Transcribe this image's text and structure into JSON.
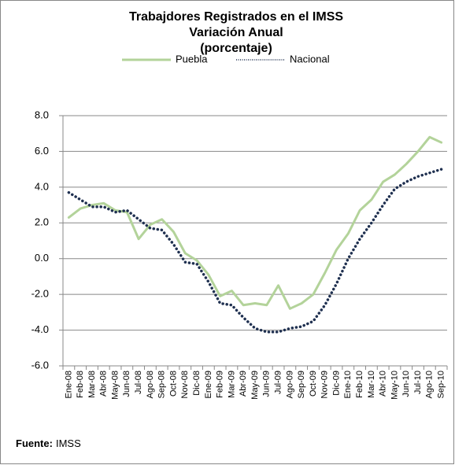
{
  "chart_data": {
    "type": "line",
    "title": [
      "Trabajdores  Registrados en el IMSS",
      "Variación Anual",
      "(porcentaje)"
    ],
    "categories": [
      "Ene-08",
      "Feb-08",
      "Mar-08",
      "Abr-08",
      "May-08",
      "Jun-08",
      "Jul-08",
      "Ago-08",
      "Sep-08",
      "Oct-08",
      "Nov-08",
      "Dic-08",
      "Ene-09",
      "Feb-09",
      "Mar-09",
      "Abr-09",
      "May-09",
      "Jun-09",
      "Jul-09",
      "Ago-09",
      "Sep-09",
      "Oct-09",
      "Nov-09",
      "Dic-09",
      "Ene-10",
      "Feb-10",
      "Mar-10",
      "Abr-10",
      "May-10",
      "Jun-10",
      "Jul-10",
      "Ago-10",
      "Sep-10"
    ],
    "series": [
      {
        "name": "Puebla",
        "color": "#b3d39a",
        "values": [
          2.3,
          2.8,
          3.0,
          3.1,
          2.7,
          2.6,
          1.1,
          1.9,
          2.2,
          1.5,
          0.3,
          -0.1,
          -0.9,
          -2.1,
          -1.8,
          -2.6,
          -2.5,
          -2.6,
          -1.5,
          -2.8,
          -2.5,
          -2.0,
          -0.8,
          0.5,
          1.4,
          2.7,
          3.3,
          4.3,
          4.7,
          5.3,
          6.0,
          6.8,
          6.5
        ]
      },
      {
        "name": "Nacional",
        "color": "#1f3050",
        "values": [
          3.7,
          3.3,
          2.9,
          2.9,
          2.6,
          2.7,
          2.2,
          1.7,
          1.6,
          0.8,
          -0.2,
          -0.3,
          -1.3,
          -2.5,
          -2.6,
          -3.3,
          -3.9,
          -4.1,
          -4.1,
          -3.9,
          -3.8,
          -3.5,
          -2.6,
          -1.4,
          0.0,
          1.1,
          2.0,
          3.0,
          3.9,
          4.3,
          4.6,
          4.8,
          5.0
        ]
      }
    ],
    "ylim": [
      -6,
      8
    ],
    "yticks": [
      {
        "value": -6,
        "label": "-6.0"
      },
      {
        "value": -4,
        "label": "-4.0"
      },
      {
        "value": -2,
        "label": "-2.0"
      },
      {
        "value": 0,
        "label": "0.0"
      },
      {
        "value": 2,
        "label": "2.0"
      },
      {
        "value": 4,
        "label": "4.0"
      },
      {
        "value": 6,
        "label": "6.0"
      },
      {
        "value": 8,
        "label": "8.0"
      }
    ],
    "grid": true,
    "legend": "top",
    "source_label": "Fuente:",
    "source": "IMSS"
  }
}
